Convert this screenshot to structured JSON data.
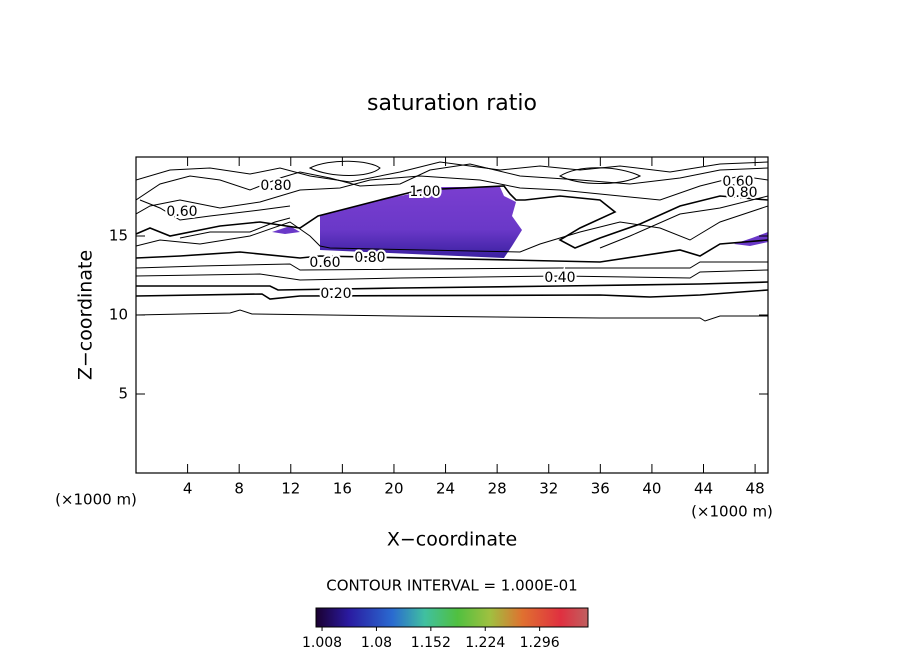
{
  "chart_data": {
    "type": "contour",
    "title": "saturation ratio",
    "x_label": "X−coordinate",
    "y_label": "Z−coordinate",
    "x_unit_left": "(×1000 m)",
    "x_unit_right": "(×1000 m)",
    "xlim": [
      0,
      49
    ],
    "xticks": [
      4,
      8,
      12,
      16,
      20,
      24,
      28,
      32,
      36,
      40,
      44,
      48
    ],
    "ylim": [
      0,
      20
    ],
    "yticks": [
      5,
      10,
      15
    ],
    "contour_labels": [
      "0.80",
      "1.00",
      "0.60",
      "0.60",
      "0.80",
      "0.80",
      "0.60",
      "0.40",
      "0.20"
    ],
    "contour_interval": "CONTOUR INTERVAL = 1.000E-01",
    "colorbar": {
      "clim": [
        1.0,
        1.36
      ],
      "ticks": [
        1.008,
        1.08,
        1.152,
        1.224,
        1.296
      ]
    }
  }
}
